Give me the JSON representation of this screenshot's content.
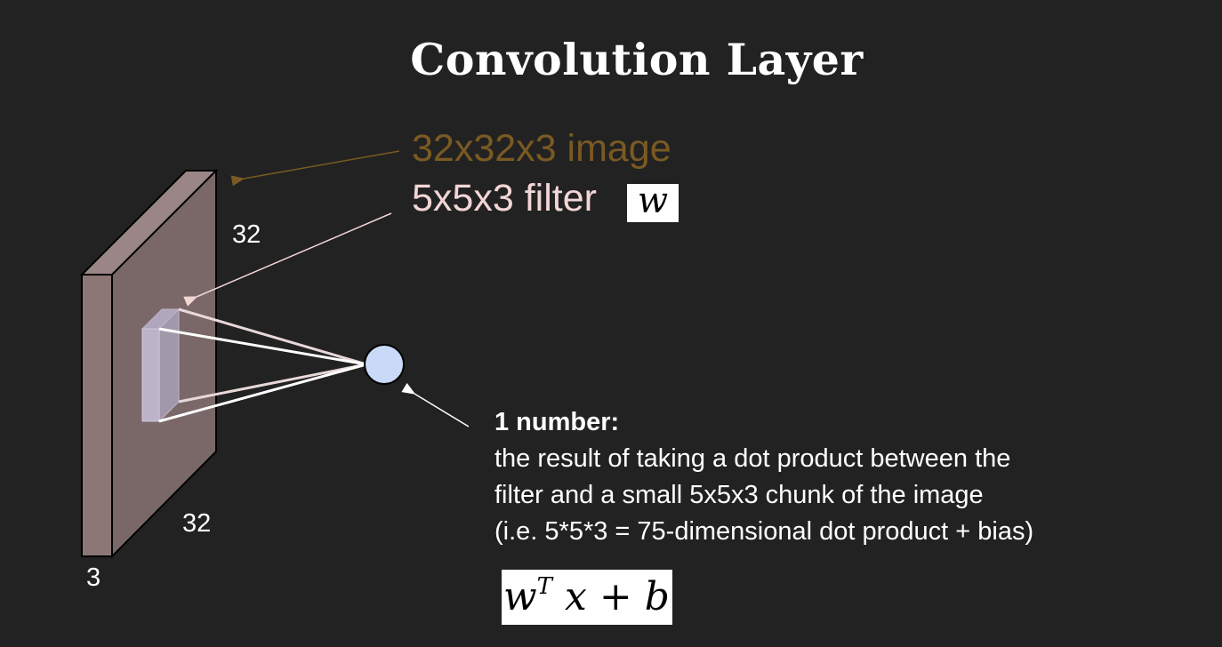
{
  "title": "Convolution Layer",
  "labels": {
    "image": "32x32x3 image",
    "filter": "5x5x3 filter",
    "filter_symbol": "w"
  },
  "dimensions": {
    "height": "32",
    "width": "32",
    "depth": "3"
  },
  "description": {
    "heading": "1 number:",
    "line1": "the result of taking a dot product between the",
    "line2": "filter and a small 5x5x3 chunk of the image",
    "line3": "(i.e. 5*5*3 = 75-dimensional dot product + bias)"
  },
  "formula": {
    "w": "w",
    "T": "T",
    "x": "x",
    "plus": "+",
    "b": "b"
  },
  "colors": {
    "background": "#222222",
    "image_label": "#7a5a22",
    "filter_label": "#f2d6d6",
    "volume_face": "#7a6868",
    "neuron": "#c9daf8"
  }
}
